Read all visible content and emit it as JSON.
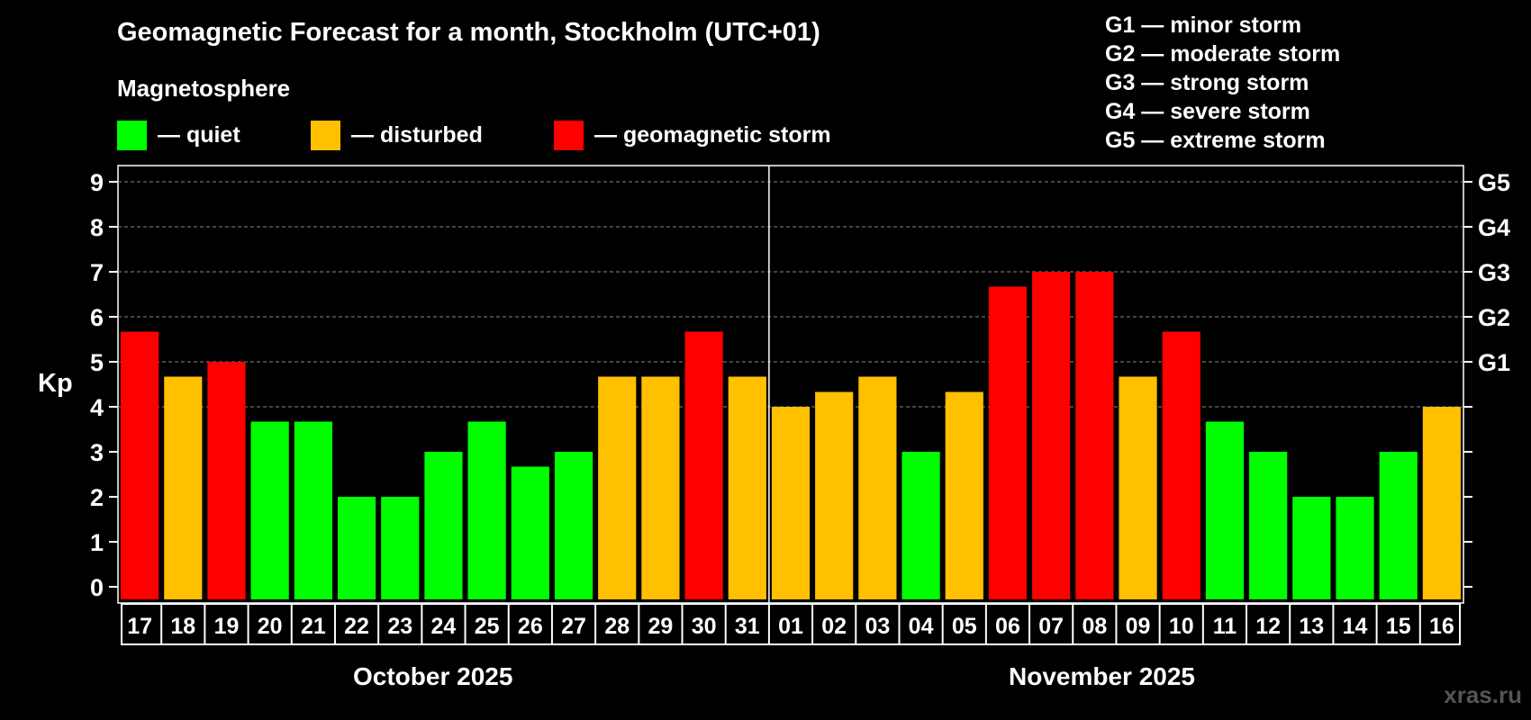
{
  "title": "Geomagnetic Forecast for a month, Stockholm (UTC+01)",
  "subtitle": "Magnetosphere",
  "legend": [
    {
      "label": "— quiet",
      "color": "#00ff00"
    },
    {
      "label": "— disturbed",
      "color": "#ffc000"
    },
    {
      "label": "— geomagnetic storm",
      "color": "#ff0000"
    }
  ],
  "storm_scale": [
    "G1 — minor storm",
    "G2 — moderate storm",
    "G3 — strong storm",
    "G4 — severe storm",
    "G5 — extreme storm"
  ],
  "watermark": "xras.ru",
  "chart_data": {
    "type": "bar",
    "title": "Geomagnetic Forecast for a month, Stockholm (UTC+01)",
    "ylabel": "Kp",
    "ylim": [
      0,
      9
    ],
    "yticks": [
      "0",
      "1",
      "2",
      "3",
      "4",
      "5",
      "6",
      "7",
      "8",
      "9"
    ],
    "right_ticks": [
      {
        "kp": 5,
        "label": "G1"
      },
      {
        "kp": 6,
        "label": "G2"
      },
      {
        "kp": 7,
        "label": "G3"
      },
      {
        "kp": 8,
        "label": "G4"
      },
      {
        "kp": 9,
        "label": "G5"
      }
    ],
    "months": [
      {
        "label": "October 2025",
        "days": 15
      },
      {
        "label": "November 2025",
        "days": 16
      }
    ],
    "categories": [
      "17",
      "18",
      "19",
      "20",
      "21",
      "22",
      "23",
      "24",
      "25",
      "26",
      "27",
      "28",
      "29",
      "30",
      "31",
      "01",
      "02",
      "03",
      "04",
      "05",
      "06",
      "07",
      "08",
      "09",
      "10",
      "11",
      "12",
      "13",
      "14",
      "15",
      "16"
    ],
    "values": [
      5.67,
      4.67,
      5,
      3.67,
      3.67,
      2,
      2,
      3,
      3.67,
      2.67,
      3,
      4.67,
      4.67,
      5.67,
      4.67,
      4,
      4.33,
      4.67,
      3,
      4.33,
      6.67,
      7,
      7,
      4.67,
      5.67,
      3.67,
      3,
      2,
      2,
      3,
      4
    ],
    "levels": [
      "storm",
      "disturbed",
      "storm",
      "quiet",
      "quiet",
      "quiet",
      "quiet",
      "quiet",
      "quiet",
      "quiet",
      "quiet",
      "disturbed",
      "disturbed",
      "storm",
      "disturbed",
      "disturbed",
      "disturbed",
      "disturbed",
      "quiet",
      "disturbed",
      "storm",
      "storm",
      "storm",
      "disturbed",
      "storm",
      "quiet",
      "quiet",
      "quiet",
      "quiet",
      "quiet",
      "disturbed"
    ],
    "level_colors": {
      "quiet": "#00ff00",
      "disturbed": "#ffc000",
      "storm": "#ff0000"
    }
  }
}
